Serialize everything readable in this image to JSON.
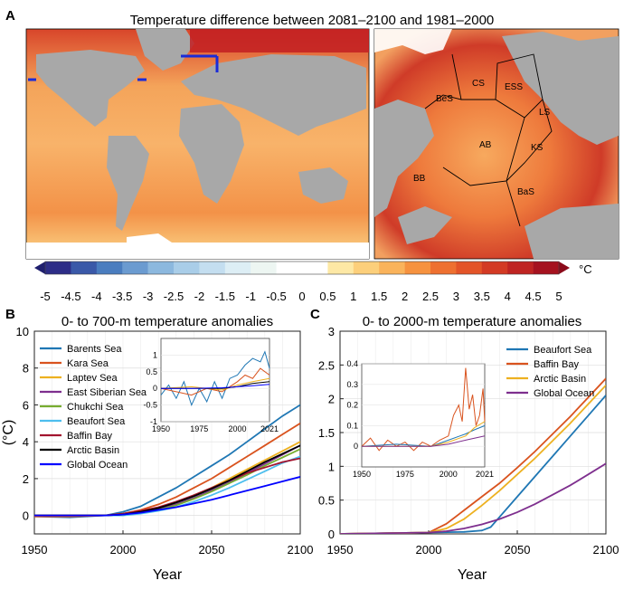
{
  "panels": {
    "a": {
      "letter": "A",
      "title": "Temperature difference between 2081–2100 and 1981–2000",
      "region_labels": [
        "CS",
        "ESS",
        "BeS",
        "LS",
        "AB",
        "KS",
        "BB",
        "BaS"
      ],
      "colorbar": {
        "unit": "°C",
        "ticks": [
          "-5",
          "-4.5",
          "-4",
          "-3.5",
          "-3",
          "-2.5",
          "-2",
          "-1.5",
          "-1",
          "-0.5",
          "0",
          "0.5",
          "1",
          "1.5",
          "2",
          "2.5",
          "3",
          "3.5",
          "4",
          "4.5",
          "5"
        ],
        "colors": [
          "#2d2d87",
          "#3a59a8",
          "#4a7dbf",
          "#6b9bd0",
          "#8cb8de",
          "#a9cde8",
          "#c4def0",
          "#ddeef5",
          "#edf6f2",
          "#ffffff",
          "#ffffff",
          "#fde8a5",
          "#fccf7b",
          "#fab35b",
          "#f6923f",
          "#ee7030",
          "#e35428",
          "#d33a24",
          "#bf2422",
          "#a5121f"
        ]
      }
    },
    "b": {
      "letter": "B",
      "chart_data": {
        "type": "line",
        "title": "0- to 700-m temperature anomalies",
        "xlabel": "Year",
        "ylabel": "(°C)",
        "xlim": [
          1950,
          2100
        ],
        "ylim": [
          -1,
          10
        ],
        "xticks": [
          "1950",
          "2000",
          "2050",
          "2100"
        ],
        "yticks": [
          "0",
          "2",
          "4",
          "6",
          "8",
          "10"
        ],
        "grid": true,
        "legend_position": "upper-left",
        "series": [
          {
            "name": "Barents Sea",
            "color": "#1f77b4",
            "x": [
              1950,
              1970,
              1990,
              2000,
              2010,
              2020,
              2030,
              2040,
              2050,
              2060,
              2070,
              2080,
              2090,
              2100
            ],
            "y": [
              -0.05,
              -0.1,
              0.0,
              0.2,
              0.5,
              1.0,
              1.5,
              2.1,
              2.7,
              3.3,
              4.0,
              4.7,
              5.4,
              6.0
            ]
          },
          {
            "name": "Kara Sea",
            "color": "#d9531e",
            "x": [
              1950,
              1970,
              1990,
              2000,
              2010,
              2020,
              2030,
              2040,
              2050,
              2060,
              2070,
              2080,
              2090,
              2100
            ],
            "y": [
              -0.05,
              -0.05,
              0.0,
              0.1,
              0.3,
              0.6,
              1.0,
              1.5,
              2.0,
              2.6,
              3.2,
              3.8,
              4.4,
              5.0
            ]
          },
          {
            "name": "Laptev Sea",
            "color": "#edb120",
            "x": [
              1950,
              1970,
              1990,
              2000,
              2010,
              2020,
              2030,
              2040,
              2050,
              2060,
              2070,
              2080,
              2090,
              2100
            ],
            "y": [
              0.0,
              0.0,
              0.0,
              0.05,
              0.2,
              0.4,
              0.7,
              1.1,
              1.5,
              2.0,
              2.5,
              3.0,
              3.5,
              4.0
            ]
          },
          {
            "name": "East Siberian Sea",
            "color": "#7e2f8e",
            "x": [
              1950,
              1970,
              1990,
              2000,
              2010,
              2020,
              2030,
              2040,
              2050,
              2060,
              2070,
              2080,
              2090,
              2100
            ],
            "y": [
              0.0,
              0.0,
              0.0,
              0.05,
              0.15,
              0.35,
              0.6,
              0.95,
              1.35,
              1.8,
              2.3,
              2.8,
              3.3,
              3.8
            ]
          },
          {
            "name": "Chukchi Sea",
            "color": "#77ac30",
            "x": [
              1950,
              1970,
              1990,
              2000,
              2010,
              2020,
              2030,
              2040,
              2050,
              2060,
              2070,
              2080,
              2090,
              2100
            ],
            "y": [
              0.0,
              0.0,
              0.0,
              0.05,
              0.15,
              0.3,
              0.55,
              0.9,
              1.3,
              1.75,
              2.2,
              2.7,
              3.15,
              3.6
            ]
          },
          {
            "name": "Beaufort Sea",
            "color": "#4dbeee",
            "x": [
              1950,
              1970,
              1990,
              2000,
              2010,
              2020,
              2030,
              2040,
              2050,
              2060,
              2070,
              2080,
              2090,
              2100
            ],
            "y": [
              0.0,
              0.0,
              0.0,
              0.0,
              0.1,
              0.25,
              0.45,
              0.75,
              1.1,
              1.5,
              1.95,
              2.4,
              2.85,
              3.2
            ]
          },
          {
            "name": "Baffin Bay",
            "color": "#a2142f",
            "x": [
              1950,
              1970,
              1990,
              2000,
              2010,
              2020,
              2030,
              2040,
              2050,
              2060,
              2070,
              2080,
              2090,
              2100
            ],
            "y": [
              0.0,
              0.0,
              0.0,
              0.1,
              0.25,
              0.45,
              0.75,
              1.1,
              1.5,
              1.9,
              2.3,
              2.6,
              2.9,
              3.1
            ]
          },
          {
            "name": "Arctic Basin",
            "color": "#000000",
            "x": [
              1950,
              1970,
              1990,
              2000,
              2010,
              2020,
              2030,
              2040,
              2050,
              2060,
              2070,
              2080,
              2090,
              2100
            ],
            "y": [
              0.0,
              0.0,
              0.0,
              0.05,
              0.2,
              0.4,
              0.7,
              1.05,
              1.45,
              1.9,
              2.4,
              2.9,
              3.35,
              3.8
            ]
          },
          {
            "name": "Global Ocean",
            "color": "#0000ff",
            "x": [
              1950,
              1970,
              1990,
              2000,
              2010,
              2020,
              2030,
              2040,
              2050,
              2060,
              2070,
              2080,
              2090,
              2100
            ],
            "y": [
              0.0,
              0.0,
              0.0,
              0.05,
              0.15,
              0.3,
              0.45,
              0.65,
              0.85,
              1.1,
              1.35,
              1.6,
              1.85,
              2.1
            ]
          }
        ],
        "inset": {
          "xlim": [
            1950,
            2021
          ],
          "ylim": [
            -1,
            1.5
          ],
          "xticks": [
            "1950",
            "1975",
            "2000",
            "2021"
          ],
          "yticks": [
            "-1",
            "-0.5",
            "0",
            "0.5",
            "1"
          ],
          "series": [
            {
              "color": "#1f77b4",
              "x": [
                1950,
                1955,
                1960,
                1965,
                1970,
                1975,
                1980,
                1985,
                1990,
                1995,
                2000,
                2005,
                2010,
                2015,
                2018,
                2021
              ],
              "y": [
                -0.2,
                0.1,
                -0.3,
                0.2,
                -0.5,
                0.0,
                -0.4,
                0.2,
                -0.3,
                0.3,
                0.4,
                0.7,
                0.9,
                0.8,
                1.1,
                0.6
              ]
            },
            {
              "color": "#d9531e",
              "x": [
                1950,
                1960,
                1970,
                1980,
                1990,
                2000,
                2005,
                2010,
                2015,
                2021
              ],
              "y": [
                0.0,
                -0.1,
                -0.2,
                0.0,
                -0.1,
                0.2,
                0.4,
                0.3,
                0.6,
                0.4
              ]
            },
            {
              "color": "#edb120",
              "x": [
                1950,
                1970,
                1990,
                2000,
                2010,
                2021
              ],
              "y": [
                0.0,
                0.05,
                -0.05,
                0.1,
                0.2,
                0.3
              ]
            },
            {
              "color": "#000000",
              "x": [
                1950,
                1970,
                1990,
                2000,
                2010,
                2021
              ],
              "y": [
                0.0,
                0.0,
                0.0,
                0.05,
                0.15,
                0.2
              ]
            },
            {
              "color": "#0000ff",
              "x": [
                1950,
                1970,
                1990,
                2000,
                2010,
                2021
              ],
              "y": [
                0.0,
                0.0,
                0.02,
                0.05,
                0.08,
                0.12
              ]
            }
          ]
        }
      }
    },
    "c": {
      "letter": "C",
      "chart_data": {
        "type": "line",
        "title": "0- to 2000-m temperature anomalies",
        "xlabel": "Year",
        "ylabel": "",
        "xlim": [
          1950,
          2100
        ],
        "ylim": [
          0,
          3
        ],
        "xticks": [
          "1950",
          "2000",
          "2050",
          "2100"
        ],
        "yticks": [
          "0",
          "0.5",
          "1",
          "1.5",
          "2",
          "2.5",
          "3"
        ],
        "grid": true,
        "legend_position": "upper-right",
        "series": [
          {
            "name": "Beaufort Sea",
            "color": "#1f77b4",
            "x": [
              1950,
              2000,
              2020,
              2030,
              2035,
              2040,
              2050,
              2060,
              2070,
              2080,
              2090,
              2100
            ],
            "y": [
              0.0,
              0.02,
              0.03,
              0.05,
              0.1,
              0.25,
              0.55,
              0.85,
              1.15,
              1.45,
              1.75,
              2.05
            ]
          },
          {
            "name": "Baffin Bay",
            "color": "#d9531e",
            "x": [
              1950,
              2000,
              2010,
              2020,
              2030,
              2040,
              2050,
              2060,
              2070,
              2080,
              2090,
              2100
            ],
            "y": [
              0.0,
              0.02,
              0.15,
              0.35,
              0.55,
              0.75,
              0.98,
              1.22,
              1.48,
              1.74,
              2.02,
              2.3
            ]
          },
          {
            "name": "Arctic Basin",
            "color": "#edb120",
            "x": [
              1950,
              2000,
              2010,
              2020,
              2030,
              2040,
              2050,
              2060,
              2070,
              2080,
              2090,
              2100
            ],
            "y": [
              0.0,
              0.02,
              0.08,
              0.22,
              0.42,
              0.64,
              0.88,
              1.12,
              1.38,
              1.64,
              1.92,
              2.2
            ]
          },
          {
            "name": "Global Ocean",
            "color": "#7e2f8e",
            "x": [
              1950,
              2000,
              2010,
              2020,
              2030,
              2040,
              2050,
              2060,
              2070,
              2080,
              2090,
              2100
            ],
            "y": [
              0.0,
              0.02,
              0.04,
              0.08,
              0.14,
              0.22,
              0.32,
              0.44,
              0.58,
              0.72,
              0.88,
              1.04
            ]
          }
        ],
        "inset": {
          "xlim": [
            1950,
            2021
          ],
          "ylim": [
            -0.1,
            0.4
          ],
          "xticks": [
            "1950",
            "1975",
            "2000",
            "2021"
          ],
          "yticks": [
            "0",
            "0.1",
            "0.2",
            "0.3",
            "0.4"
          ],
          "series": [
            {
              "color": "#d9531e",
              "x": [
                1950,
                1955,
                1960,
                1965,
                1970,
                1975,
                1980,
                1985,
                1990,
                1995,
                2000,
                2003,
                2006,
                2008,
                2010,
                2012,
                2014,
                2016,
                2018,
                2020,
                2021
              ],
              "y": [
                0.0,
                0.04,
                -0.02,
                0.03,
                0.0,
                0.02,
                -0.02,
                0.02,
                0.0,
                0.03,
                0.05,
                0.15,
                0.2,
                0.12,
                0.38,
                0.18,
                0.25,
                0.1,
                0.15,
                0.28,
                0.12
              ]
            },
            {
              "color": "#1f77b4",
              "x": [
                1950,
                1970,
                1990,
                2000,
                2010,
                2015,
                2021
              ],
              "y": [
                0.0,
                0.01,
                0.0,
                0.03,
                0.06,
                0.08,
                0.1
              ]
            },
            {
              "color": "#edb120",
              "x": [
                1950,
                1970,
                1990,
                2000,
                2010,
                2015,
                2021
              ],
              "y": [
                0.0,
                0.0,
                0.0,
                0.02,
                0.05,
                0.09,
                0.12
              ]
            },
            {
              "color": "#7e2f8e",
              "x": [
                1950,
                1970,
                1990,
                2000,
                2010,
                2021
              ],
              "y": [
                0.0,
                0.0,
                0.0,
                0.01,
                0.03,
                0.05
              ]
            }
          ]
        }
      }
    }
  }
}
